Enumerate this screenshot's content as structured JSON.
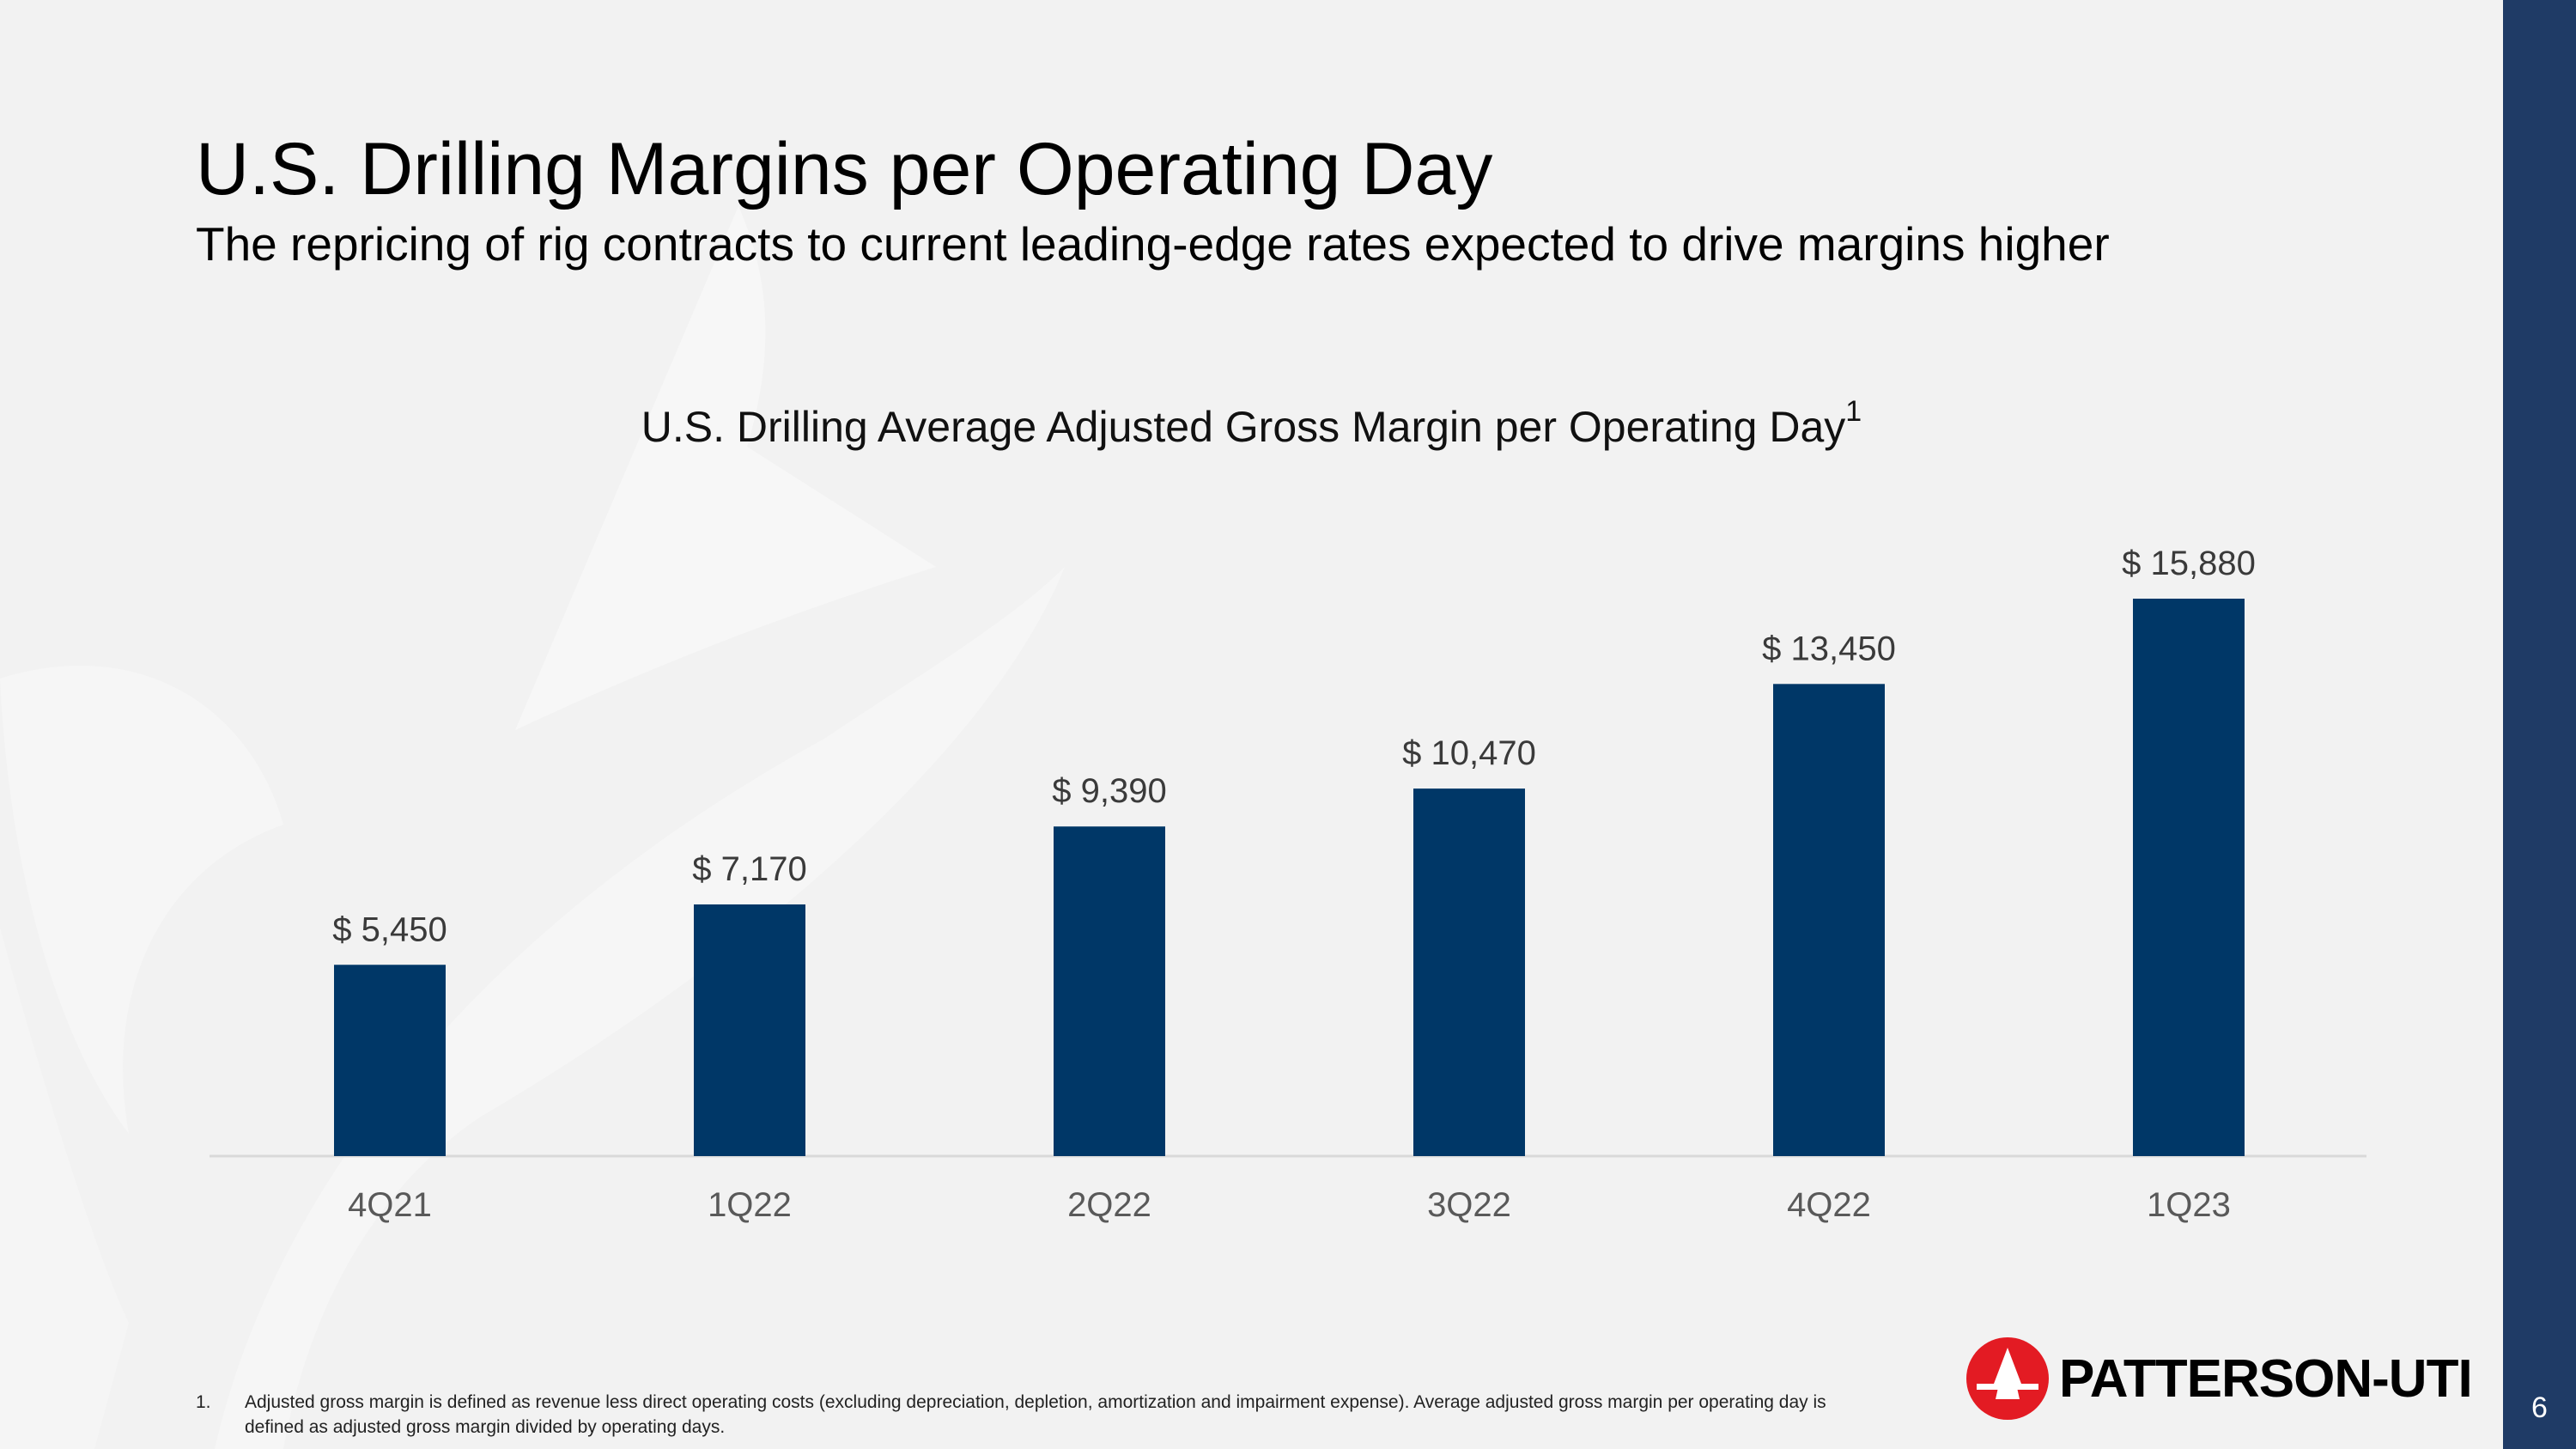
{
  "slide": {
    "title": "U.S. Drilling Margins per Operating Day",
    "subtitle": "The repricing of rig contracts to current leading-edge rates expected to drive margins higher",
    "page_number": "6",
    "footnote_number": "1.",
    "footnote_text": "Adjusted gross margin is defined as revenue less direct operating costs (excluding depreciation, depletion, amortization and impairment expense).  Average adjusted gross margin per operating day is defined as adjusted gross margin divided by operating days.",
    "logo_text": "PATTERSON-UTI"
  },
  "colors": {
    "bar": "#003767",
    "sidebar": "#1f3b66",
    "logo_red": "#e31b23",
    "background": "#f2f2f2"
  },
  "chart_data": {
    "type": "bar",
    "title": "U.S. Drilling Average Adjusted Gross Margin per Operating Day",
    "title_superscript": "1",
    "categories": [
      "4Q21",
      "1Q22",
      "2Q22",
      "3Q22",
      "4Q22",
      "1Q23"
    ],
    "values": [
      5450,
      7170,
      9390,
      10470,
      13450,
      15880
    ],
    "data_labels": [
      "$ 5,450",
      "$ 7,170",
      "$ 9,390",
      "$ 10,470",
      "$ 13,450",
      "$ 15,880"
    ],
    "xlabel": "",
    "ylabel": "",
    "ylim": [
      0,
      15880
    ],
    "grid": false,
    "legend": "none"
  }
}
